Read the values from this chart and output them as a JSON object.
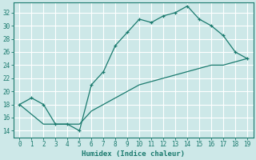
{
  "xlabel": "Humidex (Indice chaleur)",
  "background_color": "#cde8e8",
  "grid_color": "#ffffff",
  "line_color": "#1a7a6e",
  "xlim": [
    -0.5,
    19.5
  ],
  "ylim": [
    13,
    33.5
  ],
  "yticks": [
    14,
    16,
    18,
    20,
    22,
    24,
    26,
    28,
    30,
    32
  ],
  "xticks": [
    0,
    1,
    2,
    3,
    4,
    5,
    6,
    7,
    8,
    9,
    10,
    11,
    12,
    13,
    14,
    15,
    16,
    17,
    18,
    19
  ],
  "curve1_x": [
    0,
    1,
    2,
    3,
    4,
    5,
    6,
    7,
    8,
    9,
    10,
    11,
    12,
    13,
    14,
    15,
    16,
    17,
    18,
    19
  ],
  "curve1_y": [
    18,
    19,
    18,
    15,
    15,
    14,
    21,
    23,
    27,
    29,
    31,
    30.5,
    31.5,
    32,
    33,
    31,
    30,
    28.5,
    26,
    25
  ],
  "curve2_x": [
    0,
    2,
    3,
    4,
    5,
    6,
    7,
    8,
    9,
    10,
    11,
    12,
    13,
    14,
    15,
    16,
    17,
    18,
    19
  ],
  "curve2_y": [
    18,
    15,
    15,
    15,
    15,
    17,
    18,
    19,
    20,
    21,
    21.5,
    22,
    22.5,
    23,
    23.5,
    24,
    24,
    24.5,
    25
  ]
}
